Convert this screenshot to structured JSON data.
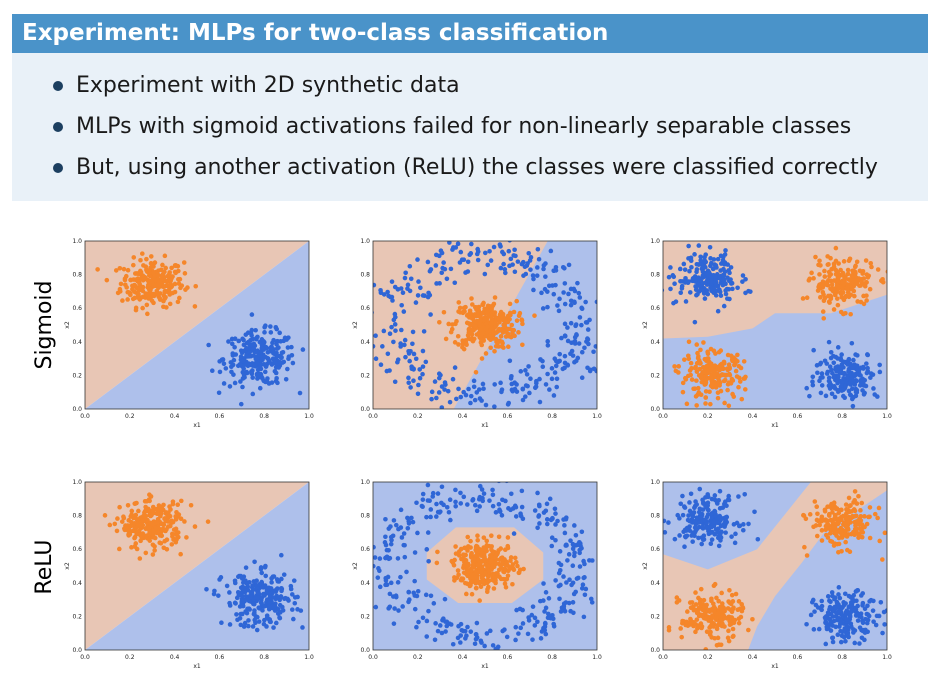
{
  "slide": {
    "title": "Experiment: MLPs for two-class classification",
    "bullets": [
      "Experiment with 2D synthetic data",
      "MLPs with sigmoid activations failed for non-linearly separable classes",
      "But, using another activation (ReLU) the classes were classified correctly"
    ],
    "row_labels": [
      "Sigmoid",
      "ReLU"
    ]
  },
  "colors": {
    "title_bg": "#4a93c9",
    "box_bg": "#e9f1f8",
    "orange": "#f5862a",
    "blue": "#2f66d6",
    "region_orange": "#e8c6b5",
    "region_blue": "#aec0eb"
  },
  "chart_data": [
    {
      "type": "scatter",
      "activation": "Sigmoid",
      "dataset": "linear",
      "xlabel": "x1",
      "ylabel": "x2",
      "xlim": [
        0,
        1
      ],
      "ylim": [
        0,
        1
      ],
      "ticks": [
        "0.0",
        "0.2",
        "0.4",
        "0.6",
        "0.8",
        "1.0"
      ],
      "clusters": [
        {
          "class": "orange",
          "center": [
            0.3,
            0.75
          ],
          "spread": 0.07,
          "count": 250
        },
        {
          "class": "blue",
          "center": [
            0.78,
            0.3
          ],
          "spread": 0.08,
          "count": 250
        }
      ],
      "boundary": "diagonal line from (0,0) to (1,1)"
    },
    {
      "type": "scatter",
      "activation": "Sigmoid",
      "dataset": "circles",
      "xlabel": "x1",
      "ylabel": "x2",
      "xlim": [
        0,
        1
      ],
      "ylim": [
        0,
        1
      ],
      "ticks": [
        "0.0",
        "0.2",
        "0.4",
        "0.6",
        "0.8",
        "1.0"
      ],
      "clusters": [
        {
          "class": "orange",
          "center": [
            0.5,
            0.5
          ],
          "spread": 0.07,
          "count": 300
        },
        {
          "class": "blue",
          "shape": "ring",
          "center": [
            0.5,
            0.5
          ],
          "radius": 0.42,
          "count": 350
        }
      ],
      "boundary": "failed: diagonal band, incorrect classification"
    },
    {
      "type": "scatter",
      "activation": "Sigmoid",
      "dataset": "xor",
      "xlabel": "x1",
      "ylabel": "x2",
      "xlim": [
        0,
        1
      ],
      "ylim": [
        0,
        1
      ],
      "ticks": [
        "0.0",
        "0.2",
        "0.4",
        "0.6",
        "0.8",
        "1.0"
      ],
      "clusters": [
        {
          "class": "blue",
          "center": [
            0.2,
            0.78
          ],
          "spread": 0.07,
          "count": 200
        },
        {
          "class": "orange",
          "center": [
            0.8,
            0.75
          ],
          "spread": 0.07,
          "count": 200
        },
        {
          "class": "orange",
          "center": [
            0.22,
            0.2
          ],
          "spread": 0.07,
          "count": 200
        },
        {
          "class": "blue",
          "center": [
            0.82,
            0.2
          ],
          "spread": 0.07,
          "count": 200
        }
      ],
      "boundary": "failed: stepped horizontal boundary"
    },
    {
      "type": "scatter",
      "activation": "ReLU",
      "dataset": "linear",
      "xlabel": "x1",
      "ylabel": "x2",
      "xlim": [
        0,
        1
      ],
      "ylim": [
        0,
        1
      ],
      "ticks": [
        "0.0",
        "0.2",
        "0.4",
        "0.6",
        "0.8",
        "1.0"
      ],
      "clusters": [
        {
          "class": "orange",
          "center": [
            0.3,
            0.74
          ],
          "spread": 0.07,
          "count": 250
        },
        {
          "class": "blue",
          "center": [
            0.78,
            0.3
          ],
          "spread": 0.08,
          "count": 250
        }
      ],
      "boundary": "diagonal line from (0,0) to (1,1)"
    },
    {
      "type": "scatter",
      "activation": "ReLU",
      "dataset": "circles",
      "xlabel": "x1",
      "ylabel": "x2",
      "xlim": [
        0,
        1
      ],
      "ylim": [
        0,
        1
      ],
      "ticks": [
        "0.0",
        "0.2",
        "0.4",
        "0.6",
        "0.8",
        "1.0"
      ],
      "clusters": [
        {
          "class": "orange",
          "center": [
            0.5,
            0.5
          ],
          "spread": 0.07,
          "count": 300
        },
        {
          "class": "blue",
          "shape": "ring",
          "center": [
            0.5,
            0.5
          ],
          "radius": 0.42,
          "count": 350
        }
      ],
      "boundary": "correct: polygon around inner cluster"
    },
    {
      "type": "scatter",
      "activation": "ReLU",
      "dataset": "xor",
      "xlabel": "x1",
      "ylabel": "x2",
      "xlim": [
        0,
        1
      ],
      "ylim": [
        0,
        1
      ],
      "ticks": [
        "0.0",
        "0.2",
        "0.4",
        "0.6",
        "0.8",
        "1.0"
      ],
      "clusters": [
        {
          "class": "blue",
          "center": [
            0.2,
            0.78
          ],
          "spread": 0.07,
          "count": 200
        },
        {
          "class": "orange",
          "center": [
            0.8,
            0.75
          ],
          "spread": 0.07,
          "count": 200
        },
        {
          "class": "orange",
          "center": [
            0.22,
            0.2
          ],
          "spread": 0.07,
          "count": 200
        },
        {
          "class": "blue",
          "center": [
            0.82,
            0.2
          ],
          "spread": 0.07,
          "count": 200
        }
      ],
      "boundary": "correct: diagonal band separating classes"
    }
  ]
}
